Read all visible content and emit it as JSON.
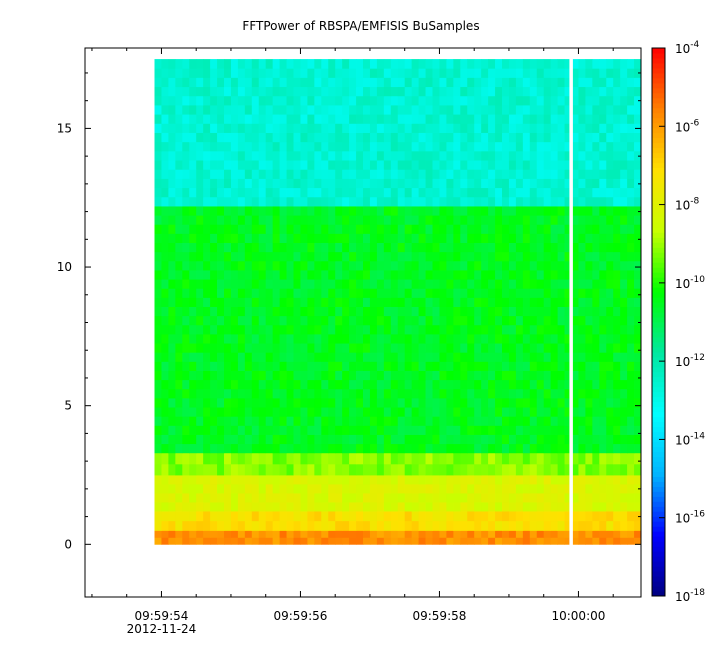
{
  "chart_data": {
    "type": "heatmap",
    "title": "FFTPower of RBSPA/EMFISIS  BuSamples",
    "xlabel": "",
    "ylabel": "",
    "x_ticks": [
      {
        "t": 54,
        "label": "09:59:54",
        "sublabel": "2012-11-24"
      },
      {
        "t": 56,
        "label": "09:59:56",
        "sublabel": ""
      },
      {
        "t": 58,
        "label": "09:59:58",
        "sublabel": ""
      },
      {
        "t": 60,
        "label": "10:00:00",
        "sublabel": ""
      }
    ],
    "x_range_seconds_after_0959": [
      52.9,
      60.9
    ],
    "data_time_range_seconds_after_0959": [
      53.9,
      60.9
    ],
    "data_gap_seconds_after_0959": [
      59.87,
      59.92
    ],
    "ylim": [
      -1.9,
      17.9
    ],
    "y_ticks": [
      0,
      5,
      10,
      15
    ],
    "frequency_range": [
      0,
      17.5
    ],
    "colorbar": {
      "scale": "log",
      "range": [
        1e-18,
        0.0001
      ],
      "ticks": [
        {
          "exp": -18,
          "base": "10",
          "power": "-18"
        },
        {
          "exp": -16,
          "base": "10",
          "power": "-16"
        },
        {
          "exp": -14,
          "base": "10",
          "power": "-14"
        },
        {
          "exp": -12,
          "base": "10",
          "power": "-12"
        },
        {
          "exp": -10,
          "base": "10",
          "power": "-10"
        },
        {
          "exp": -8,
          "base": "10",
          "power": "-8"
        },
        {
          "exp": -6,
          "base": "10",
          "power": "-6"
        },
        {
          "exp": -4,
          "base": "10",
          "power": "-4"
        }
      ],
      "colors": [
        "#000080",
        "#0000ff",
        "#00b4ff",
        "#00ffff",
        "#00e8a0",
        "#00ff00",
        "#c8ff00",
        "#ffe000",
        "#ff8000",
        "#ff0000"
      ]
    },
    "power_bands_log10": [
      {
        "f_min": 0.0,
        "f_max": 0.5,
        "log_power": -5.8
      },
      {
        "f_min": 0.5,
        "f_max": 1.2,
        "log_power": -7.2
      },
      {
        "f_min": 1.2,
        "f_max": 2.5,
        "log_power": -8.2
      },
      {
        "f_min": 2.5,
        "f_max": 3.3,
        "log_power": -9.2
      },
      {
        "f_min": 3.3,
        "f_max": 12.2,
        "log_power": -10.5
      },
      {
        "f_min": 12.2,
        "f_max": 17.5,
        "log_power": -12.6
      }
    ]
  }
}
